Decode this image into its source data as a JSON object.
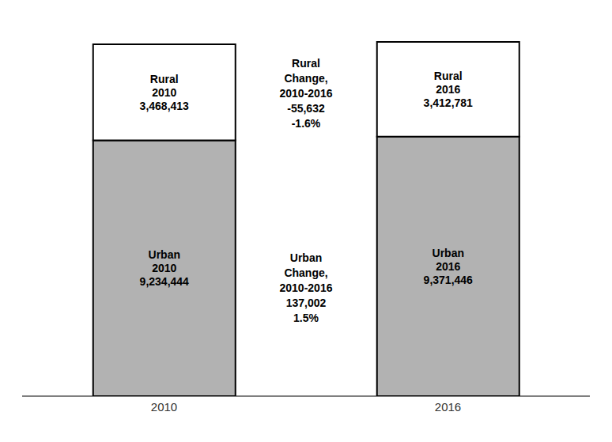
{
  "chart_data": {
    "type": "bar",
    "stacked": true,
    "categories": [
      "2010",
      "2016"
    ],
    "series": [
      {
        "name": "Urban",
        "color": "#b2b2b2",
        "values": [
          9234444,
          9371446
        ],
        "value_labels": [
          "Urban\n2010\n9,234,444",
          "Urban\n2016\n9,371,446"
        ]
      },
      {
        "name": "Rural",
        "color": "#ffffff",
        "values": [
          3468413,
          3412781
        ],
        "value_labels": [
          "Rural\n2010\n3,468,413",
          "Rural\n2016\n3,412,781"
        ]
      }
    ],
    "ylim": [
      0,
      13500000
    ],
    "data_labels": true,
    "tick_labels": "x",
    "grid": false,
    "annotations": [
      "Rural\nChange,\n2010-2016\n-55,632\n-1.6%",
      "Urban\nChange,\n2010-2016\n137,002\n1.5%"
    ]
  }
}
